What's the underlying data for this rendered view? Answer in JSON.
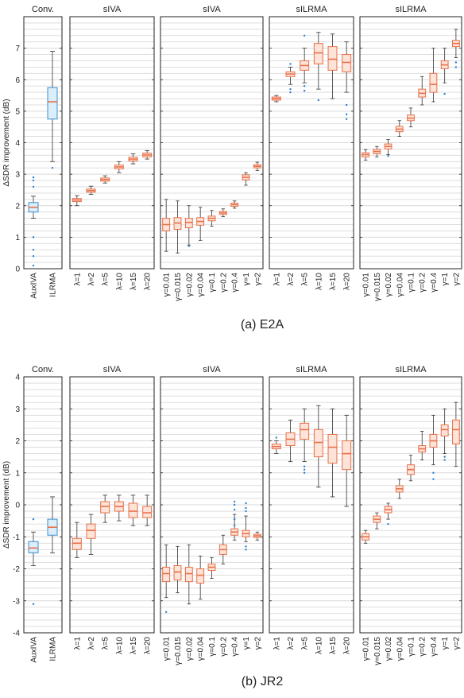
{
  "colors": {
    "blue_fill": "#dbeefa",
    "blue_line": "#3b90cf",
    "orange_fill": "#fde3d8",
    "orange_line": "#e8704a",
    "median": "#e8704a",
    "whisker": "#333333",
    "outlier": "#2a7fd0",
    "grid": "#d9d9d9"
  },
  "figures": [
    {
      "caption": "(a) E2A",
      "ylabel": "ΔSDR improvement (dB)",
      "ylim": [
        0,
        8
      ],
      "yticks": [
        "0",
        "1",
        "2",
        "3",
        "4",
        "5",
        "6",
        "7"
      ],
      "panels": [
        {
          "title": "Conv.",
          "color": "blue",
          "categories": [
            "AuxIVA",
            "ILRMA"
          ],
          "boxes": [
            {
              "q1": 1.8,
              "med": 1.95,
              "q3": 2.1,
              "lo": 1.6,
              "hi": 2.3,
              "out": [
                2.6,
                2.8,
                2.9,
                1.0,
                0.6,
                0.4,
                0.1
              ]
            },
            {
              "q1": 4.75,
              "med": 5.3,
              "q3": 5.75,
              "lo": 3.4,
              "hi": 6.9,
              "out": [
                3.2
              ]
            }
          ]
        },
        {
          "title": "sIVA",
          "color": "orange",
          "categories": [
            "λ=1",
            "λ=2",
            "λ=5",
            "λ=10",
            "λ=15",
            "λ=20"
          ],
          "boxes": [
            {
              "q1": 2.13,
              "med": 2.18,
              "q3": 2.23,
              "lo": 2.0,
              "hi": 2.32,
              "out": []
            },
            {
              "q1": 2.43,
              "med": 2.48,
              "q3": 2.53,
              "lo": 2.36,
              "hi": 2.62,
              "out": []
            },
            {
              "q1": 2.78,
              "med": 2.83,
              "q3": 2.88,
              "lo": 2.72,
              "hi": 2.95,
              "out": []
            },
            {
              "q1": 3.17,
              "med": 3.23,
              "q3": 3.29,
              "lo": 3.05,
              "hi": 3.4,
              "out": []
            },
            {
              "q1": 3.42,
              "med": 3.48,
              "q3": 3.54,
              "lo": 3.33,
              "hi": 3.65,
              "out": []
            },
            {
              "q1": 3.55,
              "med": 3.61,
              "q3": 3.67,
              "lo": 3.48,
              "hi": 3.75,
              "out": []
            }
          ]
        },
        {
          "title": "sIVA",
          "color": "orange",
          "categories": [
            "γ=0.01",
            "γ=0.015",
            "γ=0.02",
            "γ=0.04",
            "γ=0.1",
            "γ=0.2",
            "γ=0.4",
            "γ=1",
            "γ=2"
          ],
          "boxes": [
            {
              "q1": 1.2,
              "med": 1.4,
              "q3": 1.6,
              "lo": 0.55,
              "hi": 2.2,
              "out": []
            },
            {
              "q1": 1.25,
              "med": 1.45,
              "q3": 1.62,
              "lo": 0.5,
              "hi": 2.15,
              "out": []
            },
            {
              "q1": 1.3,
              "med": 1.47,
              "q3": 1.6,
              "lo": 0.75,
              "hi": 2.0,
              "out": [
                0.72
              ]
            },
            {
              "q1": 1.38,
              "med": 1.5,
              "q3": 1.62,
              "lo": 0.9,
              "hi": 1.95,
              "out": []
            },
            {
              "q1": 1.52,
              "med": 1.6,
              "q3": 1.67,
              "lo": 1.35,
              "hi": 1.85,
              "out": []
            },
            {
              "q1": 1.72,
              "med": 1.77,
              "q3": 1.82,
              "lo": 1.65,
              "hi": 1.9,
              "out": []
            },
            {
              "q1": 1.98,
              "med": 2.03,
              "q3": 2.08,
              "lo": 1.92,
              "hi": 2.15,
              "out": []
            },
            {
              "q1": 2.82,
              "med": 2.9,
              "q3": 2.98,
              "lo": 2.65,
              "hi": 3.05,
              "out": []
            },
            {
              "q1": 3.2,
              "med": 3.25,
              "q3": 3.3,
              "lo": 3.12,
              "hi": 3.38,
              "out": []
            }
          ]
        },
        {
          "title": "sILRMA",
          "color": "orange",
          "categories": [
            "λ=1",
            "λ=2",
            "λ=5",
            "λ=10",
            "λ=15",
            "λ=20"
          ],
          "boxes": [
            {
              "q1": 5.35,
              "med": 5.4,
              "q3": 5.45,
              "lo": 5.3,
              "hi": 5.5,
              "out": []
            },
            {
              "q1": 6.1,
              "med": 6.18,
              "q3": 6.25,
              "lo": 5.85,
              "hi": 6.4,
              "out": [
                5.6,
                5.7,
                6.5
              ]
            },
            {
              "q1": 6.3,
              "med": 6.45,
              "q3": 6.6,
              "lo": 5.9,
              "hi": 7.0,
              "out": [
                7.4,
                5.65,
                5.8
              ]
            },
            {
              "q1": 6.5,
              "med": 6.85,
              "q3": 7.15,
              "lo": 5.7,
              "hi": 7.5,
              "out": [
                5.35
              ]
            },
            {
              "q1": 6.3,
              "med": 6.65,
              "q3": 7.05,
              "lo": 5.4,
              "hi": 7.45,
              "out": []
            },
            {
              "q1": 6.25,
              "med": 6.55,
              "q3": 6.8,
              "lo": 5.6,
              "hi": 7.2,
              "out": [
                4.9,
                5.2,
                4.75
              ]
            }
          ]
        },
        {
          "title": "sILRMA",
          "color": "orange",
          "categories": [
            "γ=0.01",
            "γ=0.015",
            "γ=0.02",
            "γ=0.04",
            "γ=0.1",
            "γ=0.2",
            "γ=0.4",
            "γ=1",
            "γ=2"
          ],
          "boxes": [
            {
              "q1": 3.55,
              "med": 3.62,
              "q3": 3.68,
              "lo": 3.45,
              "hi": 3.78,
              "out": []
            },
            {
              "q1": 3.65,
              "med": 3.72,
              "q3": 3.79,
              "lo": 3.55,
              "hi": 3.88,
              "out": []
            },
            {
              "q1": 3.8,
              "med": 3.88,
              "q3": 3.96,
              "lo": 3.62,
              "hi": 4.1,
              "out": [
                3.58
              ]
            },
            {
              "q1": 4.35,
              "med": 4.43,
              "q3": 4.52,
              "lo": 4.2,
              "hi": 4.7,
              "out": []
            },
            {
              "q1": 4.7,
              "med": 4.78,
              "q3": 4.88,
              "lo": 4.5,
              "hi": 5.1,
              "out": []
            },
            {
              "q1": 5.45,
              "med": 5.57,
              "q3": 5.7,
              "lo": 5.2,
              "hi": 6.1,
              "out": []
            },
            {
              "q1": 5.6,
              "med": 5.85,
              "q3": 6.2,
              "lo": 5.3,
              "hi": 7.0,
              "out": []
            },
            {
              "q1": 6.35,
              "med": 6.47,
              "q3": 6.6,
              "lo": 5.9,
              "hi": 7.0,
              "out": [
                5.55
              ]
            },
            {
              "q1": 7.05,
              "med": 7.15,
              "q3": 7.25,
              "lo": 6.7,
              "hi": 7.6,
              "out": [
                6.4,
                6.55
              ]
            }
          ]
        }
      ]
    },
    {
      "caption": "(b) JR2",
      "ylabel": "ΔSDR improvement (dB)",
      "ylim": [
        -4,
        4
      ],
      "yticks": [
        "-4",
        "-3",
        "-2",
        "-1",
        "0",
        "1",
        "2",
        "3",
        "4"
      ],
      "panels": [
        {
          "title": "Conv.",
          "color": "blue",
          "categories": [
            "AuxIVA",
            "ILRMA"
          ],
          "boxes": [
            {
              "q1": -1.5,
              "med": -1.35,
              "q3": -1.15,
              "lo": -1.9,
              "hi": -0.85,
              "out": [
                -0.45,
                -3.1
              ]
            },
            {
              "q1": -0.95,
              "med": -0.7,
              "q3": -0.45,
              "lo": -1.5,
              "hi": 0.25,
              "out": []
            }
          ]
        },
        {
          "title": "sIVA",
          "color": "orange",
          "categories": [
            "λ=1",
            "λ=2",
            "λ=5",
            "λ=10",
            "λ=15",
            "λ=20"
          ],
          "boxes": [
            {
              "q1": -1.4,
              "med": -1.2,
              "q3": -1.05,
              "lo": -1.65,
              "hi": -0.55,
              "out": []
            },
            {
              "q1": -1.05,
              "med": -0.8,
              "q3": -0.6,
              "lo": -1.55,
              "hi": -0.3,
              "out": []
            },
            {
              "q1": -0.25,
              "med": -0.05,
              "q3": 0.1,
              "lo": -0.55,
              "hi": 0.3,
              "out": []
            },
            {
              "q1": -0.2,
              "med": -0.05,
              "q3": 0.1,
              "lo": -0.5,
              "hi": 0.3,
              "out": []
            },
            {
              "q1": -0.4,
              "med": -0.2,
              "q3": 0.05,
              "lo": -0.65,
              "hi": 0.3,
              "out": []
            },
            {
              "q1": -0.4,
              "med": -0.25,
              "q3": -0.05,
              "lo": -0.65,
              "hi": 0.3,
              "out": []
            }
          ]
        },
        {
          "title": "sIVA",
          "color": "orange",
          "categories": [
            "γ=0.01",
            "γ=0.015",
            "γ=0.02",
            "γ=0.04",
            "γ=0.1",
            "γ=0.2",
            "γ=0.4",
            "γ=1",
            "γ=2"
          ],
          "boxes": [
            {
              "q1": -2.4,
              "med": -2.15,
              "q3": -1.95,
              "lo": -2.9,
              "hi": -1.25,
              "out": [
                -3.35
              ]
            },
            {
              "q1": -2.35,
              "med": -2.1,
              "q3": -1.9,
              "lo": -2.75,
              "hi": -1.3,
              "out": []
            },
            {
              "q1": -2.4,
              "med": -2.15,
              "q3": -1.95,
              "lo": -3.1,
              "hi": -1.25,
              "out": []
            },
            {
              "q1": -2.45,
              "med": -2.2,
              "q3": -2.0,
              "lo": -2.95,
              "hi": -1.6,
              "out": []
            },
            {
              "q1": -2.05,
              "med": -1.95,
              "q3": -1.85,
              "lo": -2.3,
              "hi": -1.65,
              "out": []
            },
            {
              "q1": -1.55,
              "med": -1.4,
              "q3": -1.25,
              "lo": -1.85,
              "hi": -0.95,
              "out": []
            },
            {
              "q1": -0.95,
              "med": -0.85,
              "q3": -0.75,
              "lo": -1.1,
              "hi": -0.3,
              "out": [
                0.0,
                0.1,
                -0.15,
                -0.45,
                -0.65
              ]
            },
            {
              "q1": -1.0,
              "med": -0.9,
              "q3": -0.8,
              "lo": -1.15,
              "hi": -0.35,
              "out": [
                0.05,
                -0.1,
                -0.2,
                -1.3,
                -1.4
              ]
            },
            {
              "q1": -1.02,
              "med": -0.97,
              "q3": -0.92,
              "lo": -1.1,
              "hi": -0.85,
              "out": []
            }
          ]
        },
        {
          "title": "sILRMA",
          "color": "orange",
          "categories": [
            "λ=1",
            "λ=2",
            "λ=5",
            "λ=10",
            "λ=15",
            "λ=20"
          ],
          "boxes": [
            {
              "q1": 1.75,
              "med": 1.82,
              "q3": 1.9,
              "lo": 1.6,
              "hi": 2.0,
              "out": [
                2.1
              ]
            },
            {
              "q1": 1.85,
              "med": 2.05,
              "q3": 2.25,
              "lo": 1.35,
              "hi": 2.65,
              "out": []
            },
            {
              "q1": 2.05,
              "med": 2.35,
              "q3": 2.55,
              "lo": 1.35,
              "hi": 3.0,
              "out": [
                1.2,
                1.1,
                1.0
              ]
            },
            {
              "q1": 1.5,
              "med": 1.95,
              "q3": 2.35,
              "lo": 0.55,
              "hi": 3.1,
              "out": []
            },
            {
              "q1": 1.3,
              "med": 1.8,
              "q3": 2.2,
              "lo": 0.25,
              "hi": 3.0,
              "out": []
            },
            {
              "q1": 1.1,
              "med": 1.6,
              "q3": 2.0,
              "lo": -0.05,
              "hi": 2.8,
              "out": []
            }
          ]
        },
        {
          "title": "sILRMA",
          "color": "orange",
          "categories": [
            "γ=0.01",
            "γ=0.015",
            "γ=0.02",
            "γ=0.04",
            "γ=0.1",
            "γ=0.2",
            "γ=0.4",
            "γ=1",
            "γ=2"
          ],
          "boxes": [
            {
              "q1": -1.1,
              "med": -1.0,
              "q3": -0.9,
              "lo": -1.2,
              "hi": -0.8,
              "out": []
            },
            {
              "q1": -0.55,
              "med": -0.45,
              "q3": -0.35,
              "lo": -0.75,
              "hi": -0.25,
              "out": []
            },
            {
              "q1": -0.25,
              "med": -0.15,
              "q3": -0.05,
              "lo": -0.45,
              "hi": 0.05,
              "out": [
                -0.6
              ]
            },
            {
              "q1": 0.4,
              "med": 0.5,
              "q3": 0.6,
              "lo": 0.2,
              "hi": 0.8,
              "out": []
            },
            {
              "q1": 0.95,
              "med": 1.1,
              "q3": 1.25,
              "lo": 0.75,
              "hi": 1.55,
              "out": []
            },
            {
              "q1": 1.65,
              "med": 1.75,
              "q3": 1.85,
              "lo": 1.4,
              "hi": 2.3,
              "out": []
            },
            {
              "q1": 1.8,
              "med": 2.0,
              "q3": 2.2,
              "lo": 1.25,
              "hi": 2.8,
              "out": [
                0.8,
                1.0
              ]
            },
            {
              "q1": 2.15,
              "med": 2.35,
              "q3": 2.5,
              "lo": 1.6,
              "hi": 3.0,
              "out": [
                1.4,
                1.5
              ]
            },
            {
              "q1": 1.9,
              "med": 2.35,
              "q3": 2.65,
              "lo": 1.2,
              "hi": 3.2,
              "out": []
            }
          ]
        }
      ]
    }
  ]
}
